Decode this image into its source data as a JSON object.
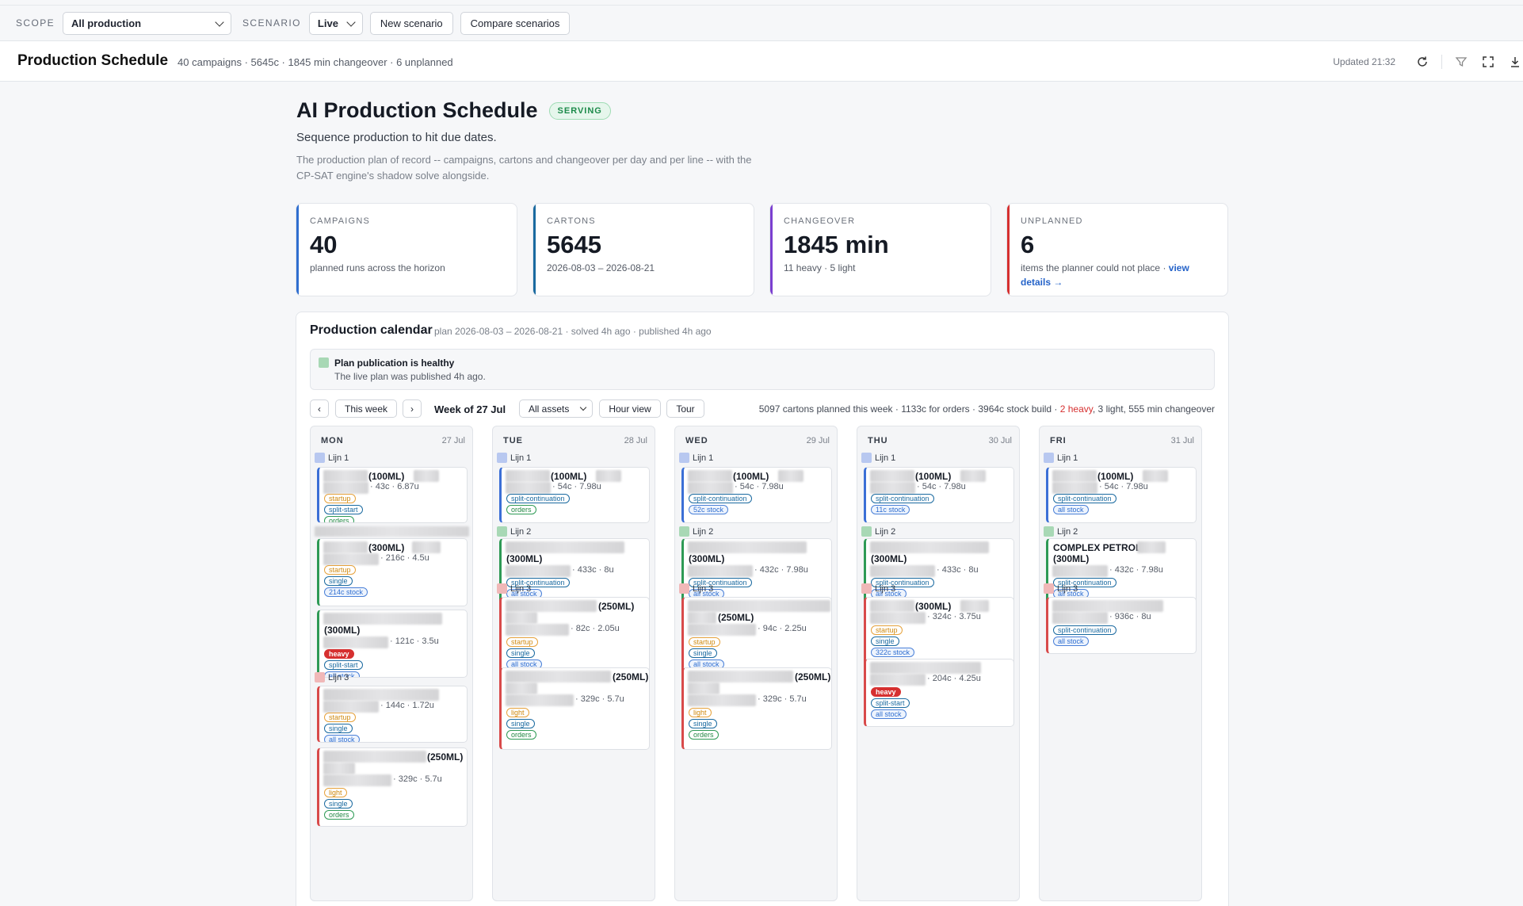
{
  "topbar": {
    "scope_label": "SCOPE",
    "scope_value": "All production",
    "scenario_label": "SCENARIO",
    "scenario_value": "Live",
    "new_scenario": "New scenario",
    "compare_scenarios": "Compare scenarios"
  },
  "header": {
    "title": "Production Schedule",
    "summary": "40 campaigns · 5645c · 1845 min changeover · 6 unplanned",
    "updated": "Updated 21:32",
    "icons": [
      "refresh-icon",
      "filter-icon",
      "fullscreen-icon",
      "download-icon"
    ]
  },
  "intro": {
    "title": "AI Production Schedule",
    "badge": "SERVING",
    "tagline": "Sequence production to hit due dates.",
    "description": "The production plan of record -- campaigns, cartons and changeover per day and per line -- with the CP-SAT engine's shadow solve alongside."
  },
  "kpis": [
    {
      "label": "CAMPAIGNS",
      "value": "40",
      "desc": "planned runs across the horizon",
      "color": "#2f6ed0"
    },
    {
      "label": "CARTONS",
      "value": "5645",
      "desc": "2026-08-03 – 2026-08-21",
      "color": "#1a6aa0"
    },
    {
      "label": "CHANGEOVER",
      "value": "1845 min",
      "desc": "11 heavy · 5 light",
      "color": "#7b3fd0"
    },
    {
      "label": "UNPLANNED",
      "value": "6",
      "desc": "items the planner could not place · ",
      "link": "view details →",
      "color": "#d63030"
    }
  ],
  "calendar": {
    "title": "Production calendar",
    "subtitle": "plan 2026-08-03 – 2026-08-21 · solved 4h ago · published 4h ago",
    "health_title": "Plan publication is healthy",
    "health_desc": "The live plan was published 4h ago.",
    "prev": "‹",
    "this_week": "This week",
    "next": "›",
    "week_of": "Week of 27 Jul",
    "assets": "All assets",
    "hour_view": "Hour view",
    "tour": "Tour",
    "week_stats_a": "5097 cartons planned this week · 1133c for orders · 3964c stock build · ",
    "week_stats_heavy": "2 heavy",
    "week_stats_b": ", 3 light, 555 min changeover",
    "lanes": {
      "l1": "Lijn 1",
      "l2": "Lijn 2",
      "l3": "Lijn 3"
    },
    "lane_colors": {
      "l1": "#b8c8f0",
      "l2": "#a8d8b5",
      "l3": "#f0b8b8"
    },
    "days": [
      {
        "name": "MON",
        "date": "27 Jul"
      },
      {
        "name": "TUE",
        "date": "28 Jul"
      },
      {
        "name": "WED",
        "date": "29 Jul"
      },
      {
        "name": "THU",
        "date": "30 Jul"
      },
      {
        "name": "FRI",
        "date": "31 Jul"
      }
    ],
    "tags": {
      "startup": "startup",
      "split_start": "split-start",
      "split_cont": "split-continuation",
      "single": "single",
      "orders": "orders",
      "all_stock": "all stock",
      "heavy": "heavy",
      "light": "light",
      "s214": "214c stock",
      "s52": "52c stock",
      "s11": "11c stock",
      "s322": "322c stock"
    },
    "cards": {
      "mon1": {
        "name": "(100ML)",
        "meta": "· 43c · 6.87u"
      },
      "mon2": {
        "name": "(300ML)",
        "meta": "· 216c · 4.5u"
      },
      "mon3": {
        "name": "(300ML)",
        "meta": "· 121c · 3.5u"
      },
      "mon4": {
        "meta": "· 144c · 1.72u"
      },
      "mon5": {
        "name": "(250ML)",
        "meta": "· 329c · 5.7u"
      },
      "tue1": {
        "name": "(100ML)",
        "meta": "· 54c · 7.98u"
      },
      "tue2": {
        "name": "(300ML)",
        "meta": "· 433c · 8u"
      },
      "tue3": {
        "name": "(250ML)",
        "meta": "· 82c · 2.05u"
      },
      "tue4": {
        "name": "(250ML)",
        "meta": "· 329c · 5.7u"
      },
      "wed1": {
        "name": "(100ML)",
        "meta": "· 54c · 7.98u"
      },
      "wed2": {
        "name": "(300ML)",
        "meta": "· 432c · 7.98u"
      },
      "wed3": {
        "name": "(250ML)",
        "meta": "· 94c · 2.25u"
      },
      "wed4": {
        "name": "(250ML)",
        "meta": "· 329c · 5.7u"
      },
      "thu1": {
        "name": "(100ML)",
        "meta": "· 54c · 7.98u"
      },
      "thu2": {
        "name": "(300ML)",
        "meta": "· 433c · 8u"
      },
      "thu3": {
        "name": "(300ML)",
        "meta": "· 324c · 3.75u"
      },
      "thu4": {
        "meta": "· 204c · 4.25u"
      },
      "fri1": {
        "name": "(100ML)",
        "meta": "· 54c · 7.98u"
      },
      "fri2": {
        "name": "COMPLEX PETROL",
        "name2": "(300ML)",
        "meta": "· 432c · 7.98u"
      },
      "fri3": {
        "meta": "· 936c · 8u"
      }
    }
  }
}
